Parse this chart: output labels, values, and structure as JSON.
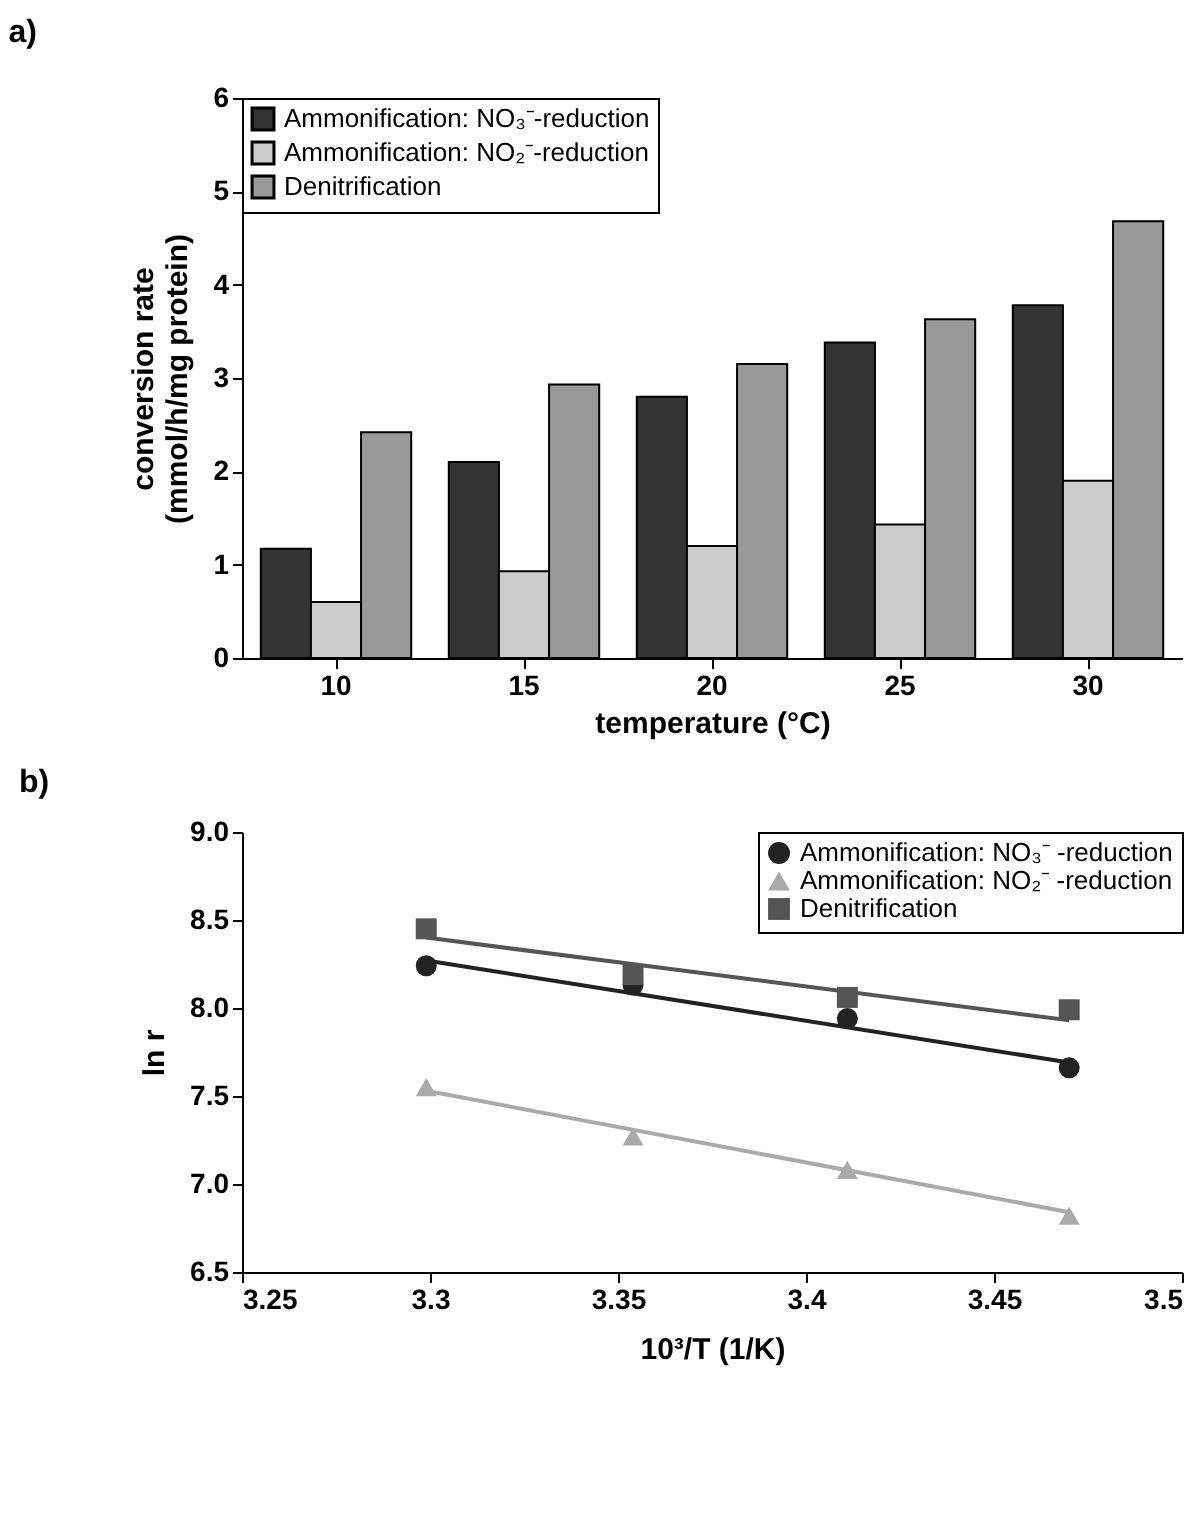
{
  "chart_data": [
    {
      "type": "bar",
      "title": "a)",
      "xlabel": "temperature (°C)",
      "ylabel": "conversion rate\n(mmol/h/mg protein)",
      "categories": [
        "10",
        "15",
        "20",
        "25",
        "30"
      ],
      "series": [
        {
          "name": "Ammonification: NO₃⁻-reduction",
          "color": "#333333",
          "values": [
            1.17,
            2.1,
            2.8,
            3.38,
            3.78
          ]
        },
        {
          "name": "Ammonification: NO₂⁻-reduction",
          "color": "#cccccc",
          "values": [
            0.6,
            0.93,
            1.2,
            1.43,
            1.9
          ]
        },
        {
          "name": "Denitrification",
          "color": "#999999",
          "values": [
            2.42,
            2.93,
            3.15,
            3.63,
            4.68
          ]
        }
      ],
      "ylim": [
        0,
        6
      ],
      "yticks": [
        0,
        1,
        2,
        3,
        4,
        5,
        6
      ],
      "grid": false,
      "legend": "top left"
    },
    {
      "type": "scatter",
      "title": "b)",
      "xlabel": "10³/T (1/K)",
      "ylabel": "ln r",
      "series": [
        {
          "name": "Ammonification: NO₃⁻ -reduction",
          "color": "#222222",
          "marker": "circle",
          "x": [
            3.299,
            3.354,
            3.411,
            3.47
          ],
          "values": [
            8.24,
            8.13,
            7.94,
            7.66
          ]
        },
        {
          "name": "Ammonification: NO₂⁻ -reduction",
          "color": "#aaaaaa",
          "marker": "triangle",
          "x": [
            3.299,
            3.354,
            3.411,
            3.47
          ],
          "values": [
            7.55,
            7.27,
            7.08,
            6.82
          ]
        },
        {
          "name": "Denitrification",
          "color": "#555555",
          "marker": "square",
          "x": [
            3.299,
            3.354,
            3.411,
            3.47
          ],
          "values": [
            8.45,
            8.19,
            8.06,
            7.99
          ]
        },
        {
          "type": "line",
          "color": "#222222",
          "x": [
            3.299,
            3.47
          ],
          "values": [
            8.27,
            7.69
          ]
        },
        {
          "type": "line",
          "color": "#aaaaaa",
          "x": [
            3.299,
            3.47
          ],
          "values": [
            7.53,
            6.84
          ]
        },
        {
          "type": "line",
          "color": "#555555",
          "x": [
            3.299,
            3.47
          ],
          "values": [
            8.4,
            7.93
          ]
        }
      ],
      "xlim": [
        3.25,
        3.5
      ],
      "xticks": [
        3.25,
        3.3,
        3.35,
        3.4,
        3.45,
        3.5
      ],
      "ylim": [
        6.5,
        9
      ],
      "yticks": [
        {
          "value": 6.5,
          "label": "6.5"
        },
        {
          "value": 7,
          "label": "7.0"
        },
        {
          "value": 7.5,
          "label": "7.5"
        },
        {
          "value": 8,
          "label": "8.0"
        },
        {
          "value": 8.5,
          "label": "8.5"
        },
        {
          "value": 9,
          "label": "9.0"
        }
      ],
      "grid": false,
      "legend": "top right"
    }
  ]
}
